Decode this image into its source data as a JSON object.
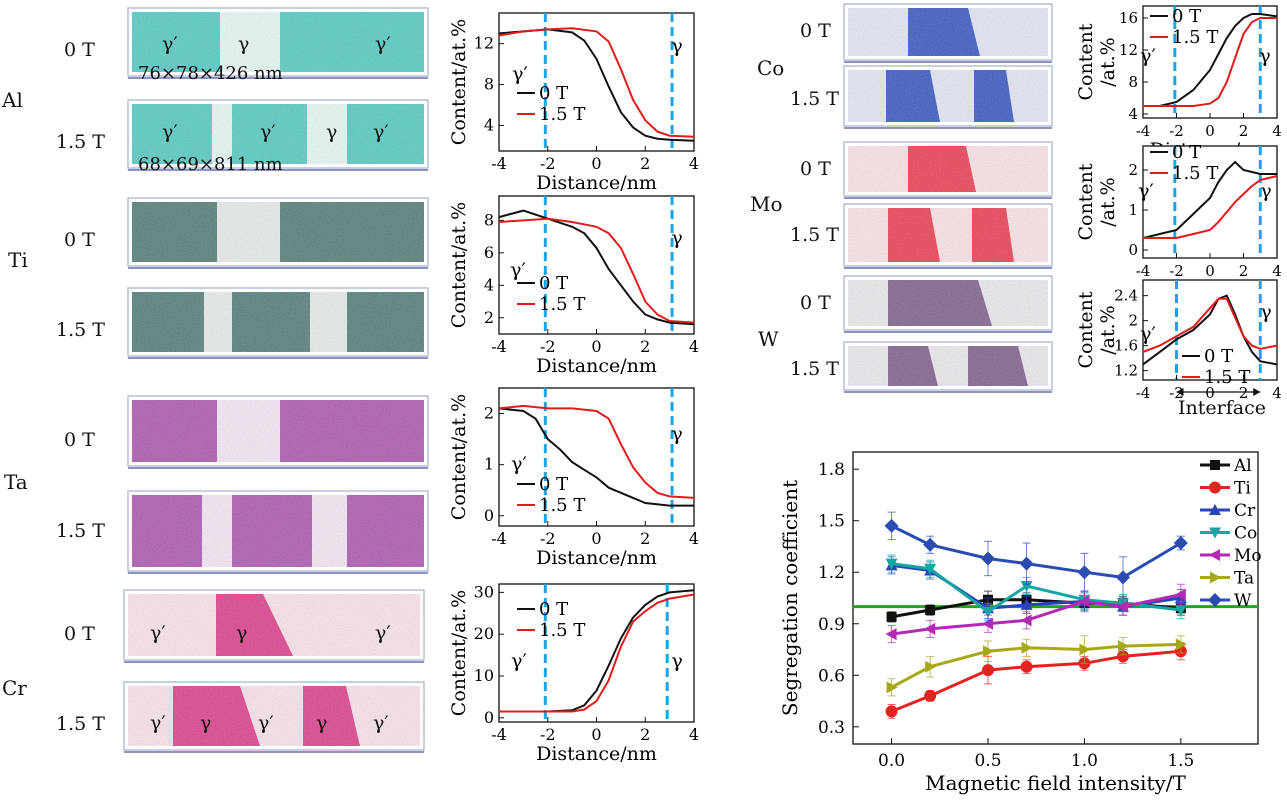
{
  "figure": {
    "elements": {
      "al": "Al",
      "ti": "Ti",
      "ta": "Ta",
      "cr": "Cr",
      "co": "Co",
      "mo": "Mo",
      "w": "W"
    },
    "field_0": "0 T",
    "field_15": "1.5 T",
    "gamma": "γ",
    "gamma_prime": "γ′",
    "dim_0T": "76×78×426 nm",
    "dim_15T": "68×69×811 nm",
    "interface_label": "Interface",
    "legend_0T": "0 T",
    "legend_15T": "1.5 T",
    "colors": {
      "al": "#3cc4b8",
      "ti": "#3d6a66",
      "ta": "#a13fa3",
      "cr": "#d8247a",
      "co": "#1d3fb8",
      "mo": "#e8233a",
      "w": "#6e4a7e",
      "black_line": "#111111",
      "red_line": "#e01b1b",
      "interface": "#1aa3e8"
    }
  },
  "chart_data": [
    {
      "type": "line",
      "id": "al_profile",
      "xlabel": "Distance/nm",
      "ylabel": "Content/at.%",
      "xlim": [
        -4,
        4
      ],
      "ylim": [
        1.5,
        15
      ],
      "xticks": [
        -4,
        -2,
        0,
        2,
        4
      ],
      "yticks": [
        4,
        8,
        12
      ],
      "interfaces": [
        -2.1,
        3.1
      ],
      "series": [
        {
          "name": "0 T",
          "x": [
            -4,
            -3,
            -2,
            -1,
            -0.5,
            0,
            0.5,
            1,
            1.5,
            2,
            2.5,
            3,
            4
          ],
          "y": [
            13,
            13.2,
            13.4,
            13.1,
            12.3,
            10.5,
            7.8,
            5.3,
            3.8,
            3.0,
            2.7,
            2.6,
            2.5
          ]
        },
        {
          "name": "1.5 T",
          "x": [
            -4,
            -3,
            -2,
            -1,
            0,
            0.5,
            1,
            1.5,
            2,
            2.5,
            3,
            4
          ],
          "y": [
            12.8,
            13.2,
            13.4,
            13.5,
            13.2,
            12.2,
            9.5,
            6.5,
            4.5,
            3.4,
            3.0,
            2.9
          ]
        }
      ]
    },
    {
      "type": "line",
      "id": "ti_profile",
      "xlabel": "Distance/nm",
      "ylabel": "Content/at.%",
      "xlim": [
        -4,
        4
      ],
      "ylim": [
        1,
        9.5
      ],
      "xticks": [
        -4,
        -2,
        0,
        2,
        4
      ],
      "yticks": [
        2,
        4,
        6,
        8
      ],
      "interfaces": [
        -2.1,
        3.1
      ],
      "series": [
        {
          "name": "0 T",
          "x": [
            -4,
            -3,
            -2,
            -1,
            -0.5,
            0,
            0.5,
            1,
            1.5,
            2,
            2.5,
            3,
            4
          ],
          "y": [
            8.2,
            8.6,
            8.1,
            7.6,
            7.2,
            6.3,
            5.0,
            4.0,
            3.0,
            2.2,
            1.9,
            1.7,
            1.6
          ]
        },
        {
          "name": "1.5 T",
          "x": [
            -4,
            -3,
            -2,
            -1,
            0,
            0.5,
            1,
            1.5,
            2,
            2.5,
            3,
            4
          ],
          "y": [
            7.9,
            8.0,
            8.1,
            7.9,
            7.6,
            7.2,
            6.3,
            4.7,
            3.0,
            2.2,
            1.8,
            1.7
          ]
        }
      ]
    },
    {
      "type": "line",
      "id": "ta_profile",
      "xlabel": "Distance/nm",
      "ylabel": "Content/at.%",
      "xlim": [
        -4,
        4
      ],
      "ylim": [
        -0.2,
        2.5
      ],
      "xticks": [
        -4,
        -2,
        0,
        2,
        4
      ],
      "yticks": [
        0,
        1,
        2
      ],
      "interfaces": [
        -2.1,
        3.1
      ],
      "series": [
        {
          "name": "0 T",
          "x": [
            -4,
            -3,
            -2.5,
            -2,
            -1.5,
            -1,
            -0.5,
            0,
            0.5,
            1,
            1.5,
            2,
            3,
            4
          ],
          "y": [
            2.1,
            2.05,
            1.9,
            1.5,
            1.3,
            1.05,
            0.9,
            0.75,
            0.55,
            0.45,
            0.35,
            0.25,
            0.2,
            0.2
          ]
        },
        {
          "name": "1.5 T",
          "x": [
            -4,
            -3,
            -2,
            -1,
            0,
            0.5,
            1,
            1.5,
            2,
            2.5,
            3,
            4
          ],
          "y": [
            2.1,
            2.15,
            2.1,
            2.1,
            2.05,
            1.9,
            1.4,
            0.95,
            0.65,
            0.45,
            0.38,
            0.35
          ]
        }
      ]
    },
    {
      "type": "line",
      "id": "cr_profile",
      "xlabel": "Distance/nm",
      "ylabel": "Content/at.%",
      "xlim": [
        -4,
        4
      ],
      "ylim": [
        -1,
        32
      ],
      "xticks": [
        -4,
        -2,
        0,
        2,
        4
      ],
      "yticks": [
        0,
        10,
        20,
        30
      ],
      "interfaces": [
        -2.1,
        2.9
      ],
      "series": [
        {
          "name": "0 T",
          "x": [
            -4,
            -2,
            -1,
            -0.5,
            0,
            0.5,
            1,
            1.5,
            2,
            2.5,
            3,
            4
          ],
          "y": [
            1.5,
            1.5,
            1.8,
            3.0,
            6.5,
            12.5,
            19.0,
            24.0,
            27.0,
            29.0,
            30.0,
            30.5
          ]
        },
        {
          "name": "1.5 T",
          "x": [
            -4,
            -2,
            -1,
            -0.5,
            0,
            0.5,
            1,
            1.5,
            2,
            2.5,
            3,
            4
          ],
          "y": [
            1.5,
            1.5,
            1.5,
            2.0,
            4.0,
            9.0,
            17.0,
            23.0,
            25.5,
            27.5,
            28.5,
            29.5
          ]
        }
      ]
    },
    {
      "type": "line",
      "id": "co_profile",
      "xlabel": "Distance/nm",
      "ylabel": "Content\n/at.%",
      "xlim": [
        -4,
        4
      ],
      "ylim": [
        3.5,
        17.5
      ],
      "xticks": [
        -4,
        -2,
        0,
        2,
        4
      ],
      "yticks": [
        4,
        8,
        12,
        16
      ],
      "interfaces": [
        -2.1,
        3.0
      ],
      "series": [
        {
          "name": "0 T",
          "x": [
            -4,
            -3,
            -2,
            -1,
            0,
            0.5,
            1,
            1.5,
            2,
            2.5,
            3,
            4
          ],
          "y": [
            5,
            5,
            5.5,
            7.0,
            9.5,
            11.5,
            13.5,
            15.0,
            16.0,
            16.5,
            16.5,
            16.2
          ]
        },
        {
          "name": "1.5 T",
          "x": [
            -4,
            -2,
            -1,
            0,
            0.5,
            1,
            1.5,
            2,
            2.5,
            3,
            4
          ],
          "y": [
            5,
            5,
            5,
            5.3,
            6.0,
            8.0,
            11.0,
            14.0,
            15.5,
            16.0,
            16.0
          ]
        }
      ]
    },
    {
      "type": "line",
      "id": "mo_profile",
      "xlabel": "Distance/nm",
      "ylabel": "Content\n/at.%",
      "xlim": [
        -4,
        4
      ],
      "ylim": [
        -0.2,
        2.6
      ],
      "xticks": [
        -4,
        -2,
        0,
        2,
        4
      ],
      "yticks": [
        0,
        1,
        2
      ],
      "interfaces": [
        -2.1,
        3.0
      ],
      "series": [
        {
          "name": "0 T",
          "x": [
            -4,
            -3,
            -2,
            -1.5,
            -1,
            -0.5,
            0,
            0.5,
            1,
            1.5,
            2,
            3,
            4
          ],
          "y": [
            0.3,
            0.4,
            0.5,
            0.7,
            0.9,
            1.1,
            1.3,
            1.7,
            2.0,
            2.2,
            2.0,
            1.9,
            1.9
          ]
        },
        {
          "name": "1.5 T",
          "x": [
            -4,
            -3,
            -2,
            -1,
            0,
            0.5,
            1,
            1.5,
            2,
            2.5,
            3,
            4
          ],
          "y": [
            0.3,
            0.3,
            0.3,
            0.4,
            0.5,
            0.7,
            0.95,
            1.2,
            1.4,
            1.6,
            1.75,
            1.85
          ]
        }
      ]
    },
    {
      "type": "line",
      "id": "w_profile",
      "xlabel": "",
      "ylabel": "Content\n/at.%",
      "xlim": [
        -4,
        4
      ],
      "ylim": [
        1.05,
        2.65
      ],
      "xticks": [
        -4,
        -2,
        0,
        2,
        4
      ],
      "yticks": [
        1.2,
        1.6,
        2.0,
        2.4
      ],
      "interfaces": [
        -2.0,
        3.0
      ],
      "series": [
        {
          "name": "0 T",
          "x": [
            -4,
            -3,
            -2,
            -1,
            0,
            0.5,
            1,
            1.5,
            2,
            2.5,
            3,
            4
          ],
          "y": [
            1.3,
            1.5,
            1.7,
            1.85,
            2.1,
            2.35,
            2.4,
            2.1,
            1.75,
            1.5,
            1.35,
            1.3
          ]
        },
        {
          "name": "1.5 T",
          "x": [
            -4,
            -3,
            -2,
            -1,
            0,
            0.5,
            1,
            1.5,
            2,
            2.5,
            3,
            4
          ],
          "y": [
            1.5,
            1.6,
            1.75,
            1.9,
            2.2,
            2.35,
            2.35,
            2.05,
            1.75,
            1.6,
            1.55,
            1.6
          ]
        }
      ]
    },
    {
      "type": "line",
      "id": "segregation",
      "xlabel": "Magnetic field intensity/T",
      "ylabel": "Segregation coefficient",
      "xlim": [
        -0.2,
        1.9
      ],
      "ylim": [
        0.2,
        1.9
      ],
      "xticks": [
        0.0,
        0.5,
        1.0,
        1.5
      ],
      "xticklabels": [
        "0.0",
        "0.5",
        "1.0",
        "1.5"
      ],
      "yticks": [
        0.3,
        0.6,
        0.9,
        1.2,
        1.5,
        1.8
      ],
      "yticklabels": [
        "0.3",
        "0.6",
        "0.9",
        "1.2",
        "1.5",
        "1.8"
      ],
      "reference_line": 1.0,
      "legend": "top-right",
      "x": [
        0.0,
        0.2,
        0.5,
        0.7,
        1.0,
        1.2,
        1.5
      ],
      "series": [
        {
          "name": "Al",
          "color": "#111111",
          "marker": "square",
          "values": [
            0.94,
            0.98,
            1.04,
            1.04,
            1.02,
            1.02,
            0.99
          ],
          "err": [
            0.03,
            0.03,
            0.05,
            0.04,
            0.04,
            0.04,
            0.04
          ]
        },
        {
          "name": "Ti",
          "color": "#e32222",
          "marker": "circle",
          "values": [
            0.39,
            0.48,
            0.63,
            0.65,
            0.67,
            0.71,
            0.74
          ],
          "err": [
            0.04,
            0.03,
            0.08,
            0.04,
            0.04,
            0.04,
            0.05
          ]
        },
        {
          "name": "Cr",
          "color": "#2a44b8",
          "marker": "triangle-up",
          "values": [
            1.24,
            1.21,
            0.99,
            1.01,
            1.03,
            1.0,
            1.05
          ],
          "err": [
            0.05,
            0.05,
            0.06,
            0.05,
            0.05,
            0.05,
            0.05
          ]
        },
        {
          "name": "Co",
          "color": "#14a6a0",
          "marker": "triangle-down",
          "values": [
            1.25,
            1.22,
            0.97,
            1.12,
            1.04,
            1.02,
            0.98
          ],
          "err": [
            0.05,
            0.05,
            0.05,
            0.05,
            0.05,
            0.05,
            0.05
          ]
        },
        {
          "name": "Mo",
          "color": "#b22ab4",
          "marker": "triangle-left",
          "values": [
            0.84,
            0.87,
            0.9,
            0.92,
            1.03,
            1.0,
            1.07
          ],
          "err": [
            0.05,
            0.05,
            0.05,
            0.05,
            0.06,
            0.05,
            0.06
          ]
        },
        {
          "name": "Ta",
          "color": "#a6a81a",
          "marker": "triangle-right",
          "values": [
            0.53,
            0.65,
            0.74,
            0.76,
            0.75,
            0.77,
            0.78
          ],
          "err": [
            0.05,
            0.06,
            0.06,
            0.05,
            0.08,
            0.05,
            0.05
          ]
        },
        {
          "name": "W",
          "color": "#2a4bb0",
          "marker": "diamond",
          "values": [
            1.47,
            1.36,
            1.28,
            1.25,
            1.2,
            1.17,
            1.37
          ],
          "err": [
            0.08,
            0.05,
            0.1,
            0.12,
            0.11,
            0.12,
            0.04
          ]
        }
      ]
    }
  ]
}
